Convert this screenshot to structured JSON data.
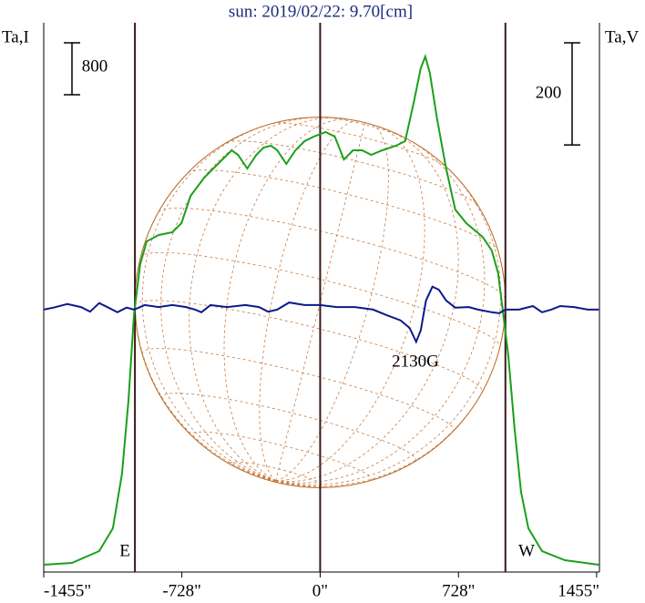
{
  "chart_data": {
    "type": "line",
    "title": "sun: 2019/02/22: 9.70[cm]",
    "y_label": "Ta,I",
    "y2_label": "Ta,V",
    "xlim": [
      -1455,
      1470
    ],
    "ylim": [
      -112,
      8351
    ],
    "y2lim": [
      -514,
      562
    ],
    "xticks": [
      {
        "value": -1455,
        "label": "-1455\""
      },
      {
        "value": -728,
        "label": "-728\""
      },
      {
        "value": 0,
        "label": "0\""
      },
      {
        "value": 728,
        "label": "728\""
      },
      {
        "value": 1455,
        "label": "1455\""
      }
    ],
    "vlines": [
      -975,
      0,
      975
    ],
    "scale_bars": [
      {
        "value": 800,
        "axis": "y"
      },
      {
        "value": 200,
        "axis": "y2"
      }
    ],
    "annotations": [
      "2130G",
      "E",
      "W"
    ],
    "series": [
      {
        "color": "#1aa01a",
        "x": [
          -1455,
          -1307,
          -1163,
          -1091,
          -1043,
          -1009,
          -980,
          -947,
          -913,
          -850,
          -778,
          -730,
          -682,
          -610,
          -538,
          -466,
          -432,
          -384,
          -336,
          -298,
          -259,
          -226,
          -178,
          -130,
          -82,
          -34,
          29,
          77,
          125,
          173,
          221,
          269,
          327,
          399,
          447,
          495,
          529,
          553,
          577,
          615,
          663,
          711,
          769,
          855,
          903,
          937,
          961,
          990,
          1023,
          1057,
          1096,
          1168,
          1288,
          1466
        ],
        "values": [
          0,
          28,
          211,
          561,
          1403,
          2526,
          3860,
          4632,
          4983,
          5081,
          5123,
          5263,
          5684,
          5965,
          6175,
          6386,
          6316,
          6105,
          6316,
          6428,
          6456,
          6386,
          6175,
          6386,
          6526,
          6596,
          6667,
          6596,
          6245,
          6386,
          6386,
          6316,
          6386,
          6456,
          6526,
          7158,
          7649,
          7831,
          7579,
          6877,
          6105,
          5474,
          5263,
          5053,
          4842,
          4491,
          3930,
          3228,
          2105,
          1123,
          561,
          210,
          70,
          0
        ]
      },
      {
        "color": "#0a1a8a",
        "axis": "y2",
        "x": [
          -1455,
          -1403,
          -1331,
          -1259,
          -1211,
          -1163,
          -1115,
          -1067,
          -1019,
          -980,
          -923,
          -850,
          -778,
          -706,
          -658,
          -625,
          -577,
          -490,
          -394,
          -322,
          -274,
          -226,
          -163,
          -82,
          0,
          86,
          183,
          279,
          351,
          423,
          471,
          505,
          529,
          557,
          591,
          625,
          663,
          711,
          783,
          831,
          903,
          942,
          975,
          1047,
          1120,
          1168,
          1216,
          1264,
          1336,
          1408,
          1466
        ],
        "values": [
          0,
          4,
          11,
          5,
          -4,
          13,
          4,
          -5,
          4,
          0,
          9,
          5,
          9,
          5,
          0,
          -5,
          9,
          5,
          9,
          5,
          -4,
          0,
          14,
          9,
          9,
          5,
          5,
          0,
          -11,
          -21,
          -36,
          -63,
          -41,
          18,
          45,
          39,
          18,
          4,
          5,
          0,
          -5,
          -7,
          0,
          0,
          7,
          -5,
          0,
          7,
          5,
          0,
          0
        ]
      }
    ]
  }
}
